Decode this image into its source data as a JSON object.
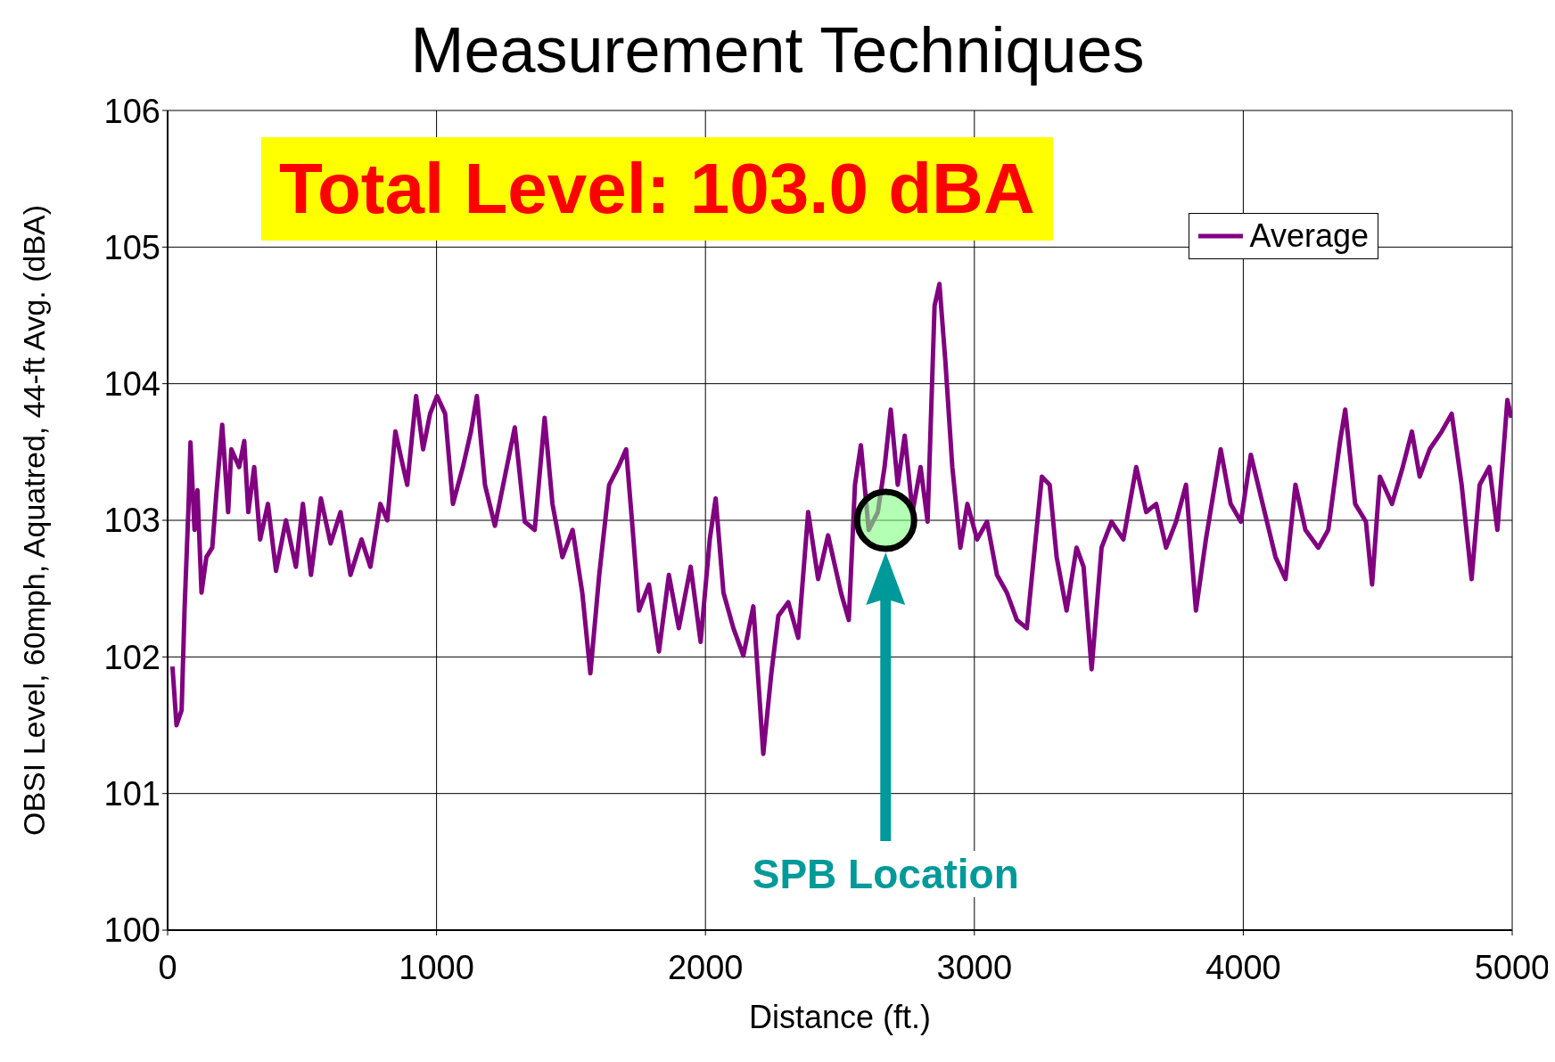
{
  "chart_data": {
    "type": "line",
    "title": "Measurement Techniques",
    "xlabel": "Distance (ft.)",
    "ylabel": "OBSI Level, 60mph, Aquatred, 44-ft Avg. (dBA)",
    "xlim": [
      0,
      5000
    ],
    "xticks": [
      0,
      1000,
      2000,
      3000,
      4000,
      5000
    ],
    "ylim": [
      100,
      106
    ],
    "yticks": [
      100,
      101,
      102,
      103,
      104,
      105,
      106
    ],
    "grid": true,
    "legend": "top right",
    "line_style": "solid",
    "annotations": [
      "Total Level: 103.0 dBA",
      "SPB Location"
    ],
    "series": [
      {
        "name": "Average",
        "color": "#800080",
        "marker": "none",
        "x": [
          18,
          33,
          52,
          63,
          78,
          85,
          100,
          111,
          126,
          144,
          166,
          181,
          203,
          225,
          237,
          266,
          285,
          300,
          322,
          344,
          373,
          403,
          440,
          477,
          503,
          533,
          570,
          606,
          643,
          680,
          721,
          754,
          791,
          817,
          847,
          869,
          891,
          924,
          950,
          976,
          1002,
          1032,
          1061,
          1098,
          1128,
          1150,
          1180,
          1217,
          1254,
          1291,
          1328,
          1365,
          1402,
          1431,
          1468,
          1506,
          1542,
          1572,
          1605,
          1642,
          1676,
          1705,
          1727,
          1753,
          1790,
          1827,
          1864,
          1901,
          1945,
          1982,
          2016,
          2038,
          2067,
          2104,
          2141,
          2178,
          2215,
          2245,
          2271,
          2308,
          2345,
          2382,
          2419,
          2456,
          2504,
          2533,
          2556,
          2578,
          2607,
          2641,
          2666,
          2689,
          2715,
          2741,
          2770,
          2800,
          2826,
          2852,
          2870,
          2892,
          2918,
          2948,
          2974,
          3010,
          3047,
          3084,
          3121,
          3158,
          3195,
          3221,
          3251,
          3280,
          3306,
          3343,
          3380,
          3406,
          3436,
          3473,
          3510,
          3554,
          3602,
          3639,
          3676,
          3713,
          3750,
          3787,
          3824,
          3861,
          3916,
          3953,
          3991,
          4028,
          4072,
          4120,
          4157,
          4194,
          4231,
          4279,
          4316,
          4360,
          4379,
          4416,
          4456,
          4479,
          4508,
          4553,
          4593,
          4627,
          4656,
          4693,
          4738,
          4775,
          4812,
          4849,
          4879,
          4915,
          4945,
          4982,
          4997
        ],
        "values": [
          101.93,
          101.5,
          101.61,
          102.35,
          103.12,
          103.57,
          102.93,
          103.22,
          102.47,
          102.73,
          102.8,
          103.19,
          103.7,
          103.06,
          103.52,
          103.39,
          103.58,
          103.06,
          103.39,
          102.86,
          103.12,
          102.63,
          103.0,
          102.66,
          103.12,
          102.6,
          103.16,
          102.83,
          103.06,
          102.6,
          102.86,
          102.66,
          103.12,
          103.0,
          103.65,
          103.45,
          103.26,
          103.91,
          103.52,
          103.78,
          103.91,
          103.78,
          103.12,
          103.39,
          103.65,
          103.91,
          103.26,
          102.96,
          103.32,
          103.68,
          102.99,
          102.93,
          103.75,
          103.12,
          102.73,
          102.93,
          102.47,
          101.88,
          102.6,
          103.26,
          103.39,
          103.52,
          102.99,
          102.34,
          102.53,
          102.04,
          102.6,
          102.21,
          102.66,
          102.11,
          102.86,
          103.16,
          102.47,
          102.21,
          102.01,
          102.37,
          101.29,
          101.88,
          102.3,
          102.4,
          102.14,
          103.06,
          102.57,
          102.89,
          102.47,
          102.27,
          103.26,
          103.55,
          102.93,
          103.06,
          103.39,
          103.81,
          103.26,
          103.62,
          103.06,
          103.39,
          102.99,
          104.57,
          104.73,
          104.17,
          103.39,
          102.8,
          103.12,
          102.86,
          102.99,
          102.6,
          102.47,
          102.27,
          102.21,
          102.73,
          103.32,
          103.26,
          102.73,
          102.34,
          102.8,
          102.66,
          101.91,
          102.8,
          102.99,
          102.86,
          103.39,
          103.06,
          103.12,
          102.8,
          102.99,
          103.26,
          102.34,
          102.86,
          103.52,
          103.12,
          102.99,
          103.48,
          103.12,
          102.73,
          102.57,
          103.26,
          102.93,
          102.8,
          102.93,
          103.58,
          103.81,
          103.12,
          102.99,
          102.53,
          103.32,
          103.12,
          103.39,
          103.65,
          103.32,
          103.52,
          103.65,
          103.78,
          103.26,
          102.57,
          103.26,
          103.39,
          102.93,
          103.88,
          103.75
        ]
      },
      {
        "type": "scatter",
        "color": "#80ff80",
        "marker": "circle",
        "x": [
          2670
        ],
        "values": [
          103.0
        ]
      }
    ]
  }
}
